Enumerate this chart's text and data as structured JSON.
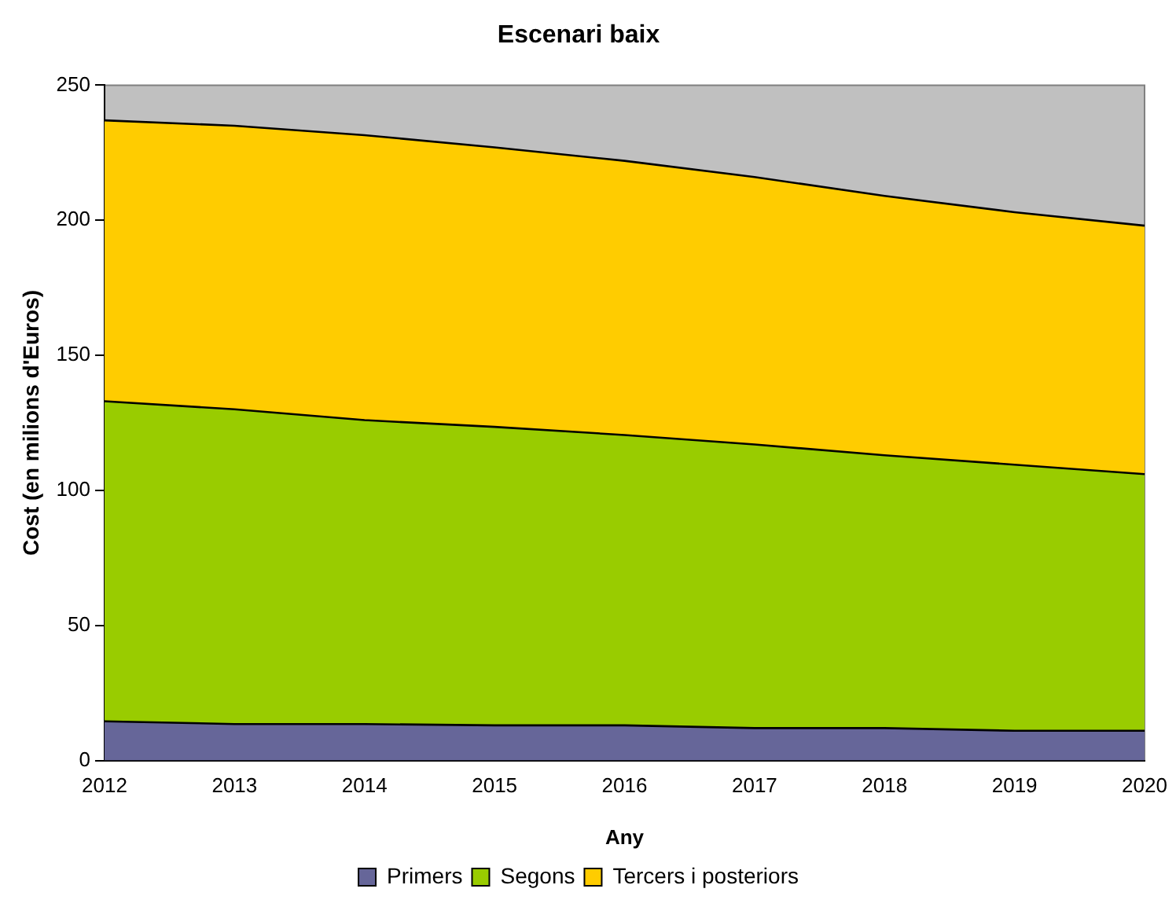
{
  "chart_data": {
    "type": "area",
    "title": "Escenari baix",
    "xlabel": "Any",
    "ylabel": "Cost (en milions d'Euros)",
    "stacked": true,
    "legend": "bottom",
    "grid": false,
    "categories": [
      "2012",
      "2013",
      "2014",
      "2015",
      "2016",
      "2017",
      "2018",
      "2019",
      "2020"
    ],
    "series": [
      {
        "name": "Primers",
        "color": "#666699",
        "values": [
          14.5,
          13.5,
          13.5,
          13,
          13,
          12,
          12,
          11,
          11
        ]
      },
      {
        "name": "Segons",
        "color": "#99cc00",
        "values": [
          118.5,
          116.5,
          112.5,
          110.5,
          107.5,
          105,
          101,
          98.5,
          95
        ]
      },
      {
        "name": "Tercers i posteriors",
        "color": "#ffcc00",
        "values": [
          104,
          105,
          105.5,
          103.5,
          101.5,
          99,
          96,
          93.5,
          92
        ]
      }
    ],
    "ylim": [
      0,
      250
    ],
    "yticks": [
      0,
      50,
      100,
      150,
      200,
      250
    ]
  }
}
